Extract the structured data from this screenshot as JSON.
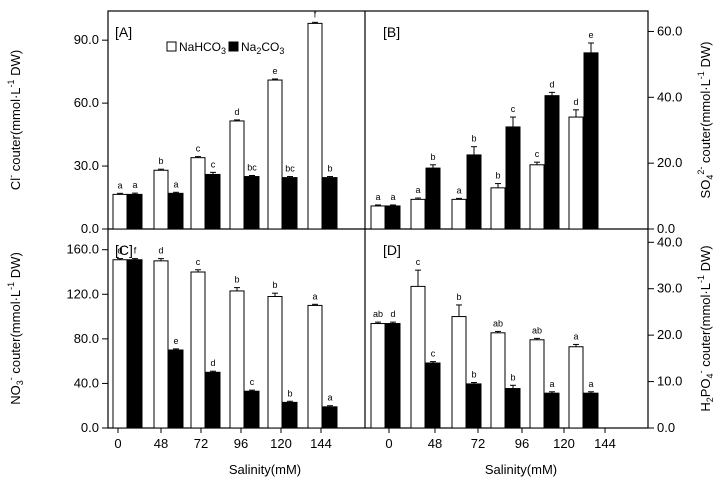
{
  "figure": {
    "xlabel": "Salinity(mM)",
    "legend": [
      "NaHCO3",
      "Na2CO3"
    ],
    "colors": {
      "NaHCO3": "#ffffff",
      "Na2CO3": "#000000",
      "axis": "#000000"
    }
  },
  "chart_data": [
    {
      "panel": "A",
      "panel_label": "[A]",
      "type": "bar",
      "title": "",
      "categories": [
        "0",
        "48",
        "72",
        "96",
        "120",
        "144"
      ],
      "xlabel": "",
      "ylabel": "Cl⁻ couter(mmol·L⁻¹ DW)",
      "ylabel_parts": {
        "pre": "Cl",
        "sup": "-",
        "post": " couter(mmol·L",
        "sup2": "-1",
        "post2": " DW)"
      },
      "ylim": [
        0,
        102
      ],
      "yticks": [
        0,
        30,
        60,
        90
      ],
      "ytick_labels": [
        "0.0",
        "30.0",
        "60.0",
        "90.0"
      ],
      "axis_side": "left",
      "series": [
        {
          "name": "NaHCO3",
          "values": [
            16.5,
            28,
            34,
            51.5,
            71,
            98
          ],
          "errors": [
            0.5,
            0.5,
            0.5,
            0.5,
            0.5,
            0.5
          ],
          "letters": [
            "a",
            "b",
            "c",
            "d",
            "e",
            "f"
          ]
        },
        {
          "name": "Na2CO3",
          "values": [
            16.5,
            17,
            26,
            25,
            24.5,
            24.5
          ],
          "errors": [
            0.6,
            0.5,
            1,
            0.5,
            0.5,
            0.5
          ],
          "letters": [
            "a",
            "a",
            "c",
            "bc",
            "bc",
            "b"
          ]
        }
      ]
    },
    {
      "panel": "B",
      "panel_label": "[B]",
      "type": "bar",
      "title": "",
      "categories": [
        "0",
        "48",
        "72",
        "96",
        "120",
        "144"
      ],
      "xlabel": "",
      "ylabel": "SO₄²⁻ couter(mmol·L⁻¹ DW)",
      "ylabel_parts": {
        "pre": "SO",
        "sub": "4",
        "sup": "2-",
        "post": " couter(mmol·L",
        "sup2": "-1",
        "post2": " DW)"
      },
      "ylim": [
        0,
        65
      ],
      "yticks": [
        0,
        20,
        40,
        60
      ],
      "ytick_labels": [
        "0.0",
        "20.0",
        "40.0",
        "60.0"
      ],
      "axis_side": "right",
      "series": [
        {
          "name": "NaHCO3",
          "values": [
            7,
            9,
            9,
            12.5,
            19.5,
            34
          ],
          "errors": [
            0.3,
            0.4,
            0.3,
            1.3,
            0.8,
            2.2
          ],
          "letters": [
            "a",
            "a",
            "a",
            "b",
            "c",
            "d"
          ]
        },
        {
          "name": "Na2CO3",
          "values": [
            7,
            18.5,
            22.5,
            31,
            40.5,
            53.5
          ],
          "errors": [
            0.3,
            1,
            2.5,
            3,
            1,
            3
          ],
          "letters": [
            "a",
            "b",
            "b",
            "c",
            "d",
            "e"
          ]
        }
      ]
    },
    {
      "panel": "C",
      "panel_label": "[C]",
      "type": "bar",
      "title": "",
      "categories": [
        "0",
        "48",
        "72",
        "96",
        "120",
        "144"
      ],
      "xlabel": "Salinity(mM)",
      "ylabel": "NO₃⁻ couter(mmol·L⁻¹ DW)",
      "ylabel_parts": {
        "pre": "NO",
        "sub": "3",
        "sup": "-",
        "post": " couter(mmol·L",
        "sup2": "-1",
        "post2": " DW)"
      },
      "ylim": [
        0,
        175
      ],
      "yticks": [
        0,
        40,
        80,
        120,
        160
      ],
      "ytick_labels": [
        "0.0",
        "40.0",
        "80.0",
        "120.0",
        "160.0"
      ],
      "axis_side": "left",
      "series": [
        {
          "name": "NaHCO3",
          "values": [
            151,
            150,
            140,
            123,
            118,
            110
          ],
          "errors": [
            1,
            2,
            2,
            3,
            3,
            1
          ],
          "letters": [
            "d",
            "d",
            "c",
            "b",
            "b",
            "a"
          ]
        },
        {
          "name": "Na2CO3",
          "values": [
            151,
            70,
            50,
            33,
            23,
            19
          ],
          "errors": [
            1,
            1,
            1,
            1,
            1,
            1
          ],
          "letters": [
            "f",
            "e",
            "d",
            "c",
            "b",
            "a"
          ]
        }
      ]
    },
    {
      "panel": "D",
      "panel_label": "[D]",
      "type": "bar",
      "title": "",
      "categories": [
        "0",
        "48",
        "72",
        "96",
        "120",
        "144"
      ],
      "xlabel": "Salinity(mM)",
      "ylabel": "H₂PO₄⁻ couter(mmol·L⁻¹ DW)",
      "ylabel_parts": {
        "pre": "H",
        "sub": "2",
        "mid": "PO",
        "sub2": "4",
        "sup": "-",
        "post": " couter(mmol·L",
        "sup2": "-1",
        "post2": " DW)"
      },
      "ylim": [
        0,
        42
      ],
      "yticks": [
        0,
        10,
        20,
        30,
        40
      ],
      "ytick_labels": [
        "0.0",
        "10.0",
        "20.0",
        "30.0",
        "40.0"
      ],
      "axis_side": "right",
      "series": [
        {
          "name": "NaHCO3",
          "values": [
            22.5,
            30.5,
            24,
            20.5,
            19,
            17.5
          ],
          "errors": [
            0.3,
            3.5,
            2.5,
            0.3,
            0.3,
            0.5
          ],
          "letters": [
            "ab",
            "c",
            "b",
            "ab",
            "ab",
            "a"
          ]
        },
        {
          "name": "Na2CO3",
          "values": [
            22.5,
            14,
            9.5,
            8.5,
            7.5,
            7.5
          ],
          "errors": [
            0.3,
            0.3,
            0.3,
            0.7,
            0.3,
            0.3
          ],
          "letters": [
            "d",
            "c",
            "b",
            "b",
            "a",
            "a"
          ]
        }
      ]
    }
  ]
}
